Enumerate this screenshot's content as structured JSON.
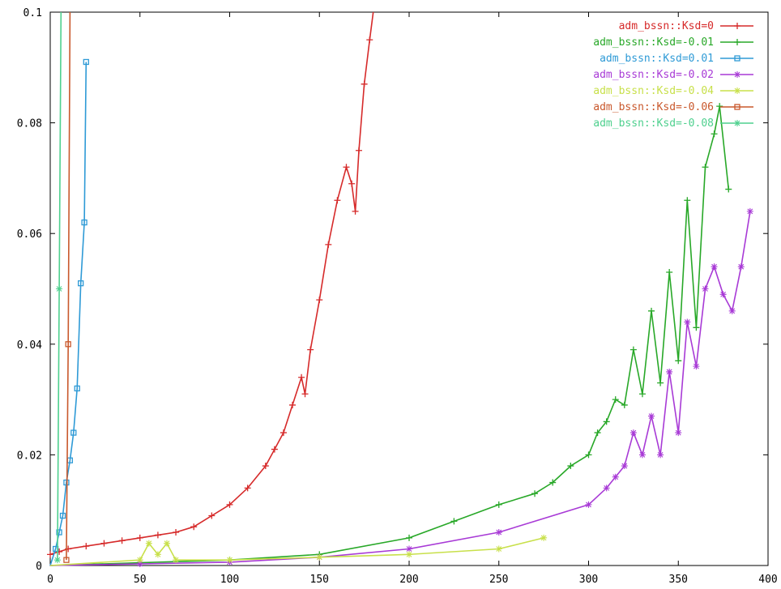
{
  "chart_data": {
    "type": "line",
    "title": "",
    "xlabel": "",
    "ylabel": "",
    "xlim": [
      0,
      400
    ],
    "ylim": [
      0,
      0.1
    ],
    "x_ticks": [
      0,
      50,
      100,
      150,
      200,
      250,
      300,
      350,
      400
    ],
    "x_tick_labels": [
      "0",
      "50",
      "100",
      "150",
      "200",
      "250",
      "300",
      "350",
      "400"
    ],
    "y_ticks": [
      0,
      0.02,
      0.04,
      0.06,
      0.08,
      0.1
    ],
    "y_tick_labels": [
      "0",
      "0.02",
      "0.04",
      "0.06",
      "0.08",
      "0.1"
    ],
    "grid": false,
    "legend_position": "top-right",
    "series": [
      {
        "name": "adm_bssn::Ksd=0",
        "color": "#d62a2a",
        "marker": "plus",
        "x": [
          0,
          5,
          10,
          20,
          30,
          40,
          50,
          60,
          70,
          80,
          90,
          100,
          110,
          120,
          125,
          130,
          135,
          140,
          142,
          145,
          150,
          155,
          160,
          165,
          168,
          170,
          172,
          175,
          178,
          180
        ],
        "y": [
          0.002,
          0.0025,
          0.003,
          0.0035,
          0.004,
          0.0045,
          0.005,
          0.0055,
          0.006,
          0.007,
          0.009,
          0.011,
          0.014,
          0.018,
          0.021,
          0.024,
          0.029,
          0.034,
          0.031,
          0.039,
          0.048,
          0.058,
          0.066,
          0.072,
          0.069,
          0.064,
          0.075,
          0.087,
          0.095,
          0.1
        ]
      },
      {
        "name": "adm_bssn::Ksd=-0.01",
        "color": "#28a828",
        "marker": "plus",
        "x": [
          0,
          50,
          100,
          150,
          200,
          225,
          250,
          270,
          280,
          290,
          300,
          305,
          310,
          315,
          320,
          325,
          330,
          335,
          340,
          345,
          350,
          355,
          360,
          365,
          370,
          373,
          378
        ],
        "y": [
          0,
          0.0005,
          0.001,
          0.002,
          0.005,
          0.008,
          0.011,
          0.013,
          0.015,
          0.018,
          0.02,
          0.024,
          0.026,
          0.03,
          0.029,
          0.039,
          0.031,
          0.046,
          0.033,
          0.053,
          0.037,
          0.066,
          0.043,
          0.072,
          0.078,
          0.083,
          0.068
        ]
      },
      {
        "name": "adm_bssn::Ksd=0.01",
        "color": "#2e9ad6",
        "marker": "box",
        "x": [
          0,
          3,
          5,
          7,
          9,
          11,
          13,
          15,
          17,
          19,
          20
        ],
        "y": [
          0,
          0.003,
          0.006,
          0.009,
          0.015,
          0.019,
          0.024,
          0.032,
          0.051,
          0.062,
          0.091
        ]
      },
      {
        "name": "adm_bssn::Ksd=-0.02",
        "color": "#a83ad6",
        "marker": "star",
        "x": [
          0,
          50,
          100,
          150,
          200,
          250,
          300,
          310,
          315,
          320,
          325,
          330,
          335,
          340,
          345,
          350,
          355,
          360,
          365,
          370,
          375,
          380,
          385,
          390
        ],
        "y": [
          0,
          0.0003,
          0.0006,
          0.0015,
          0.003,
          0.006,
          0.011,
          0.014,
          0.016,
          0.018,
          0.024,
          0.02,
          0.027,
          0.02,
          0.035,
          0.024,
          0.044,
          0.036,
          0.05,
          0.054,
          0.049,
          0.046,
          0.054,
          0.064
        ]
      },
      {
        "name": "adm_bssn::Ksd=-0.04",
        "color": "#c8e04a",
        "marker": "star",
        "x": [
          0,
          50,
          55,
          60,
          65,
          70,
          100,
          150,
          200,
          250,
          275
        ],
        "y": [
          0,
          0.001,
          0.004,
          0.002,
          0.004,
          0.001,
          0.001,
          0.0015,
          0.002,
          0.003,
          0.005
        ]
      },
      {
        "name": "adm_bssn::Ksd=-0.06",
        "color": "#c9582c",
        "marker": "box",
        "x": [
          9,
          10,
          11
        ],
        "y": [
          0.001,
          0.04,
          0.1
        ]
      },
      {
        "name": "adm_bssn::Ksd=-0.08",
        "color": "#4ed08e",
        "marker": "star",
        "x": [
          4,
          5,
          6
        ],
        "y": [
          0.001,
          0.05,
          0.1
        ]
      }
    ]
  }
}
